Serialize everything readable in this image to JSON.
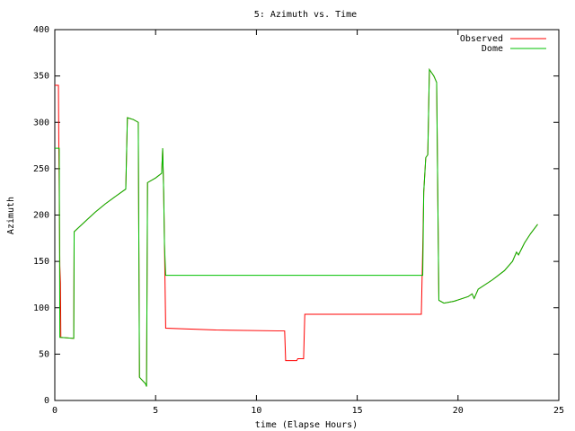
{
  "chart_data": {
    "type": "line",
    "title": "5: Azimuth vs. Time",
    "x_label": "time (Elapse Hours)",
    "y_label": "Azimuth",
    "x": [
      0,
      0.18,
      0.2,
      0.22,
      0.25,
      0.28,
      0.3,
      0.94,
      0.96,
      1.5,
      2,
      2.5,
      3,
      3.52,
      3.6,
      3.9,
      4.14,
      4.2,
      4.5,
      4.55,
      4.6,
      5.0,
      5.3,
      5.35,
      5.4,
      5.44,
      5.5,
      8,
      11.4,
      11.45,
      12.0,
      12.05,
      12.34,
      12.4,
      18.18,
      18.25,
      18.3,
      18.4,
      18.5,
      18.58,
      18.8,
      18.94,
      19.05,
      19.3,
      19.8,
      20.5,
      20.7,
      20.8,
      21.0,
      21.7,
      22.3,
      22.7,
      22.9,
      23.0,
      23.3,
      23.6,
      23.95
    ],
    "series": [
      {
        "name": "Observed",
        "color": "#ff0000",
        "values": [
          340,
          340,
          270,
          225,
          145,
          127,
          68,
          67,
          182,
          193,
          203,
          212,
          220,
          228,
          305,
          303,
          300,
          25,
          18,
          15,
          235,
          240,
          245,
          272,
          225,
          168,
          78,
          76,
          75,
          43,
          43,
          45,
          45,
          93,
          93,
          165,
          225,
          262,
          265,
          357,
          350,
          343,
          108,
          105,
          107,
          112,
          115,
          110,
          120,
          130,
          140,
          150,
          160,
          157,
          170,
          180,
          190
        ]
      },
      {
        "name": "Dome",
        "color": "#00c000",
        "values": [
          272,
          272,
          272,
          272,
          68,
          68,
          68,
          67,
          182,
          193,
          203,
          212,
          220,
          228,
          305,
          303,
          300,
          25,
          18,
          15,
          235,
          240,
          245,
          272,
          225,
          168,
          135,
          135,
          135,
          135,
          135,
          135,
          135,
          135,
          135,
          135,
          225,
          262,
          265,
          357,
          350,
          343,
          108,
          105,
          107,
          112,
          115,
          110,
          120,
          130,
          140,
          150,
          160,
          157,
          170,
          180,
          190
        ]
      }
    ],
    "xlim": [
      0,
      25
    ],
    "xticks": [
      0,
      5,
      10,
      15,
      20,
      25
    ],
    "ylim": [
      0,
      400
    ],
    "yticks": [
      0,
      50,
      100,
      150,
      200,
      250,
      300,
      350,
      400
    ],
    "grid": false,
    "legend": "top-right"
  }
}
